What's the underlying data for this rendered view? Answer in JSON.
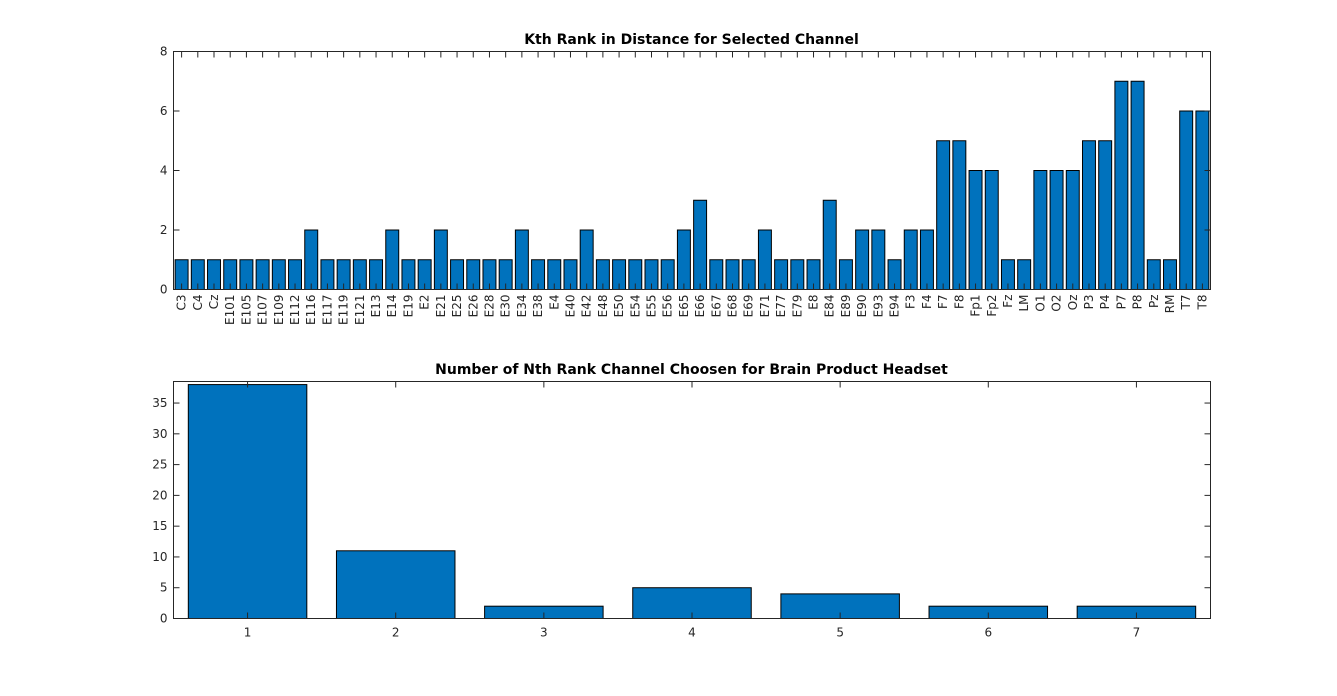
{
  "chart_data": [
    {
      "type": "bar",
      "title": "Kth Rank in Distance for Selected Channel",
      "xlabel": "",
      "ylabel": "",
      "ylim": [
        0,
        8
      ],
      "yticks": [
        0,
        2,
        4,
        6,
        8
      ],
      "grid": false,
      "bar_color": "#0072BD",
      "categories": [
        "C3",
        "C4",
        "Cz",
        "E101",
        "E105",
        "E107",
        "E109",
        "E112",
        "E116",
        "E117",
        "E119",
        "E121",
        "E13",
        "E14",
        "E19",
        "E2",
        "E21",
        "E25",
        "E26",
        "E28",
        "E30",
        "E34",
        "E38",
        "E4",
        "E40",
        "E42",
        "E48",
        "E50",
        "E54",
        "E55",
        "E56",
        "E65",
        "E66",
        "E67",
        "E68",
        "E69",
        "E71",
        "E77",
        "E79",
        "E8",
        "E84",
        "E89",
        "E90",
        "E93",
        "E94",
        "F3",
        "F4",
        "F7",
        "F8",
        "Fp1",
        "Fp2",
        "Fz",
        "LM",
        "O1",
        "O2",
        "Oz",
        "P3",
        "P4",
        "P7",
        "P8",
        "Pz",
        "RM",
        "T7",
        "T8"
      ],
      "values": [
        1,
        1,
        1,
        1,
        1,
        1,
        1,
        1,
        2,
        1,
        1,
        1,
        1,
        2,
        1,
        1,
        2,
        1,
        1,
        1,
        1,
        2,
        1,
        1,
        1,
        2,
        1,
        1,
        1,
        1,
        1,
        2,
        3,
        1,
        1,
        1,
        2,
        1,
        1,
        1,
        3,
        1,
        2,
        2,
        1,
        2,
        2,
        5,
        5,
        4,
        4,
        1,
        1,
        4,
        4,
        4,
        5,
        5,
        7,
        7,
        1,
        1,
        6,
        6
      ]
    },
    {
      "type": "bar",
      "title": "Number of Nth Rank Channel Choosen for Brain Product Headset",
      "xlabel": "",
      "ylabel": "",
      "ylim": [
        0,
        38.5
      ],
      "yticks": [
        0,
        5,
        10,
        15,
        20,
        25,
        30,
        35
      ],
      "grid": false,
      "bar_color": "#0072BD",
      "categories": [
        "1",
        "2",
        "3",
        "4",
        "5",
        "6",
        "7"
      ],
      "values": [
        38,
        11,
        2,
        5,
        4,
        2,
        2
      ]
    }
  ]
}
